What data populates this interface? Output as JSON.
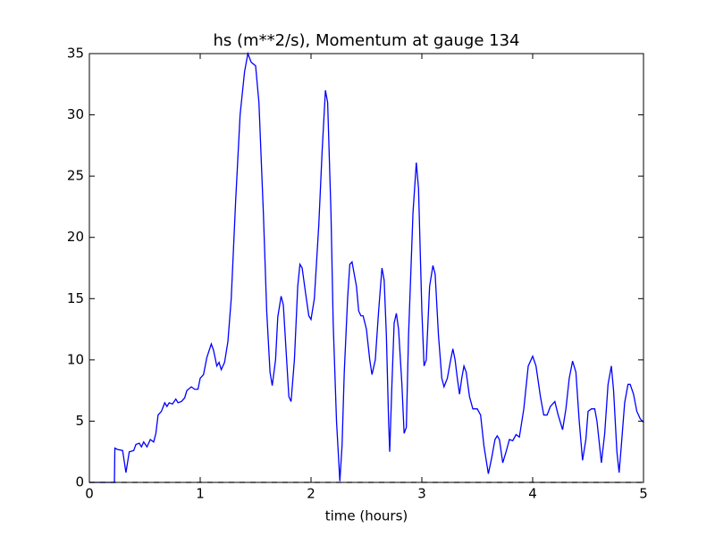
{
  "chart_data": {
    "type": "line",
    "title": "hs (m**2/s), Momentum at gauge 134",
    "xlabel": "time (hours)",
    "xlim": [
      0,
      5
    ],
    "ylim": [
      0,
      35
    ],
    "xticks": [
      0,
      1,
      2,
      3,
      4,
      5
    ],
    "yticks": [
      0,
      5,
      10,
      15,
      20,
      25,
      30,
      35
    ],
    "grid": false,
    "series": [
      {
        "color": "#0000ff",
        "linestyle": "solid",
        "x": [
          0,
          0.1,
          0.2,
          0.226,
          0.23,
          0.25,
          0.3,
          0.33,
          0.36,
          0.4,
          0.42,
          0.45,
          0.47,
          0.49,
          0.52,
          0.55,
          0.58,
          0.6,
          0.62,
          0.65,
          0.68,
          0.7,
          0.72,
          0.75,
          0.78,
          0.8,
          0.83,
          0.86,
          0.88,
          0.92,
          0.95,
          0.98,
          1.0,
          1.03,
          1.06,
          1.1,
          1.12,
          1.15,
          1.17,
          1.19,
          1.22,
          1.25,
          1.28,
          1.32,
          1.36,
          1.4,
          1.43,
          1.46,
          1.5,
          1.53,
          1.57,
          1.6,
          1.63,
          1.65,
          1.68,
          1.7,
          1.73,
          1.75,
          1.78,
          1.8,
          1.82,
          1.85,
          1.88,
          1.9,
          1.92,
          1.95,
          1.98,
          2.0,
          2.03,
          2.07,
          2.1,
          2.13,
          2.15,
          2.18,
          2.2,
          2.23,
          2.26,
          2.28,
          2.3,
          2.33,
          2.35,
          2.37,
          2.39,
          2.41,
          2.43,
          2.45,
          2.47,
          2.5,
          2.53,
          2.55,
          2.58,
          2.61,
          2.64,
          2.66,
          2.68,
          2.7,
          2.71,
          2.73,
          2.75,
          2.77,
          2.79,
          2.82,
          2.84,
          2.86,
          2.88,
          2.92,
          2.95,
          2.97,
          3.0,
          3.02,
          3.04,
          3.07,
          3.1,
          3.12,
          3.15,
          3.18,
          3.2,
          3.23,
          3.26,
          3.28,
          3.3,
          3.32,
          3.34,
          3.36,
          3.38,
          3.4,
          3.43,
          3.46,
          3.5,
          3.53,
          3.56,
          3.6,
          3.63,
          3.66,
          3.68,
          3.7,
          3.73,
          3.76,
          3.79,
          3.82,
          3.85,
          3.88,
          3.92,
          3.96,
          4.0,
          4.03,
          4.07,
          4.1,
          4.13,
          4.16,
          4.2,
          4.23,
          4.27,
          4.3,
          4.33,
          4.36,
          4.39,
          4.42,
          4.45,
          4.48,
          4.5,
          4.53,
          4.56,
          4.58,
          4.62,
          4.65,
          4.68,
          4.71,
          4.73,
          4.76,
          4.78,
          4.8,
          4.83,
          4.86,
          4.88,
          4.91,
          4.94,
          4.97,
          5.0
        ],
        "values": [
          0,
          0,
          0,
          0,
          2.8,
          2.7,
          2.6,
          0.8,
          2.5,
          2.6,
          3.1,
          3.2,
          2.9,
          3.3,
          2.9,
          3.5,
          3.3,
          4,
          5.5,
          5.8,
          6.5,
          6.2,
          6.5,
          6.4,
          6.8,
          6.5,
          6.6,
          6.9,
          7.5,
          7.8,
          7.6,
          7.6,
          8.5,
          8.8,
          10.2,
          11.3,
          10.8,
          9.5,
          9.8,
          9.2,
          9.8,
          11.5,
          15,
          23,
          30,
          33.5,
          35,
          34.3,
          34,
          31,
          22,
          14,
          9,
          7.9,
          10,
          13.5,
          15.2,
          14.5,
          10,
          7,
          6.6,
          10,
          16,
          17.8,
          17.5,
          15.5,
          13.6,
          13.3,
          15,
          21,
          27,
          32,
          31,
          22,
          13,
          5,
          0.1,
          3,
          9,
          15,
          17.8,
          18,
          17,
          16,
          14,
          13.6,
          13.6,
          12.5,
          10,
          8.8,
          10,
          14,
          17.5,
          16.5,
          12,
          5,
          2.5,
          8,
          13,
          13.8,
          12.5,
          8,
          4,
          4.5,
          12,
          22,
          26.1,
          24,
          14,
          9.5,
          10,
          16,
          17.7,
          17,
          12,
          8.5,
          7.8,
          8.5,
          10,
          10.9,
          10,
          8.5,
          7.2,
          8.5,
          9.5,
          9,
          7,
          6,
          6,
          5.5,
          3,
          0.7,
          2,
          3.5,
          3.8,
          3.5,
          1.6,
          2.5,
          3.5,
          3.4,
          3.9,
          3.7,
          6,
          9.5,
          10.3,
          9.5,
          7,
          5.5,
          5.5,
          6.2,
          6.6,
          5.5,
          4.3,
          6,
          8.5,
          9.9,
          9,
          5,
          1.8,
          3.5,
          5.8,
          6,
          6,
          5,
          1.6,
          4,
          8,
          9.5,
          7.5,
          2.5,
          0.8,
          3,
          6.5,
          8,
          8,
          7.2,
          5.8,
          5.2,
          4.9
        ]
      },
      {
        "color": "#000000",
        "linestyle": "dashed",
        "x": [
          0,
          5
        ],
        "values": [
          0,
          0
        ]
      }
    ]
  }
}
